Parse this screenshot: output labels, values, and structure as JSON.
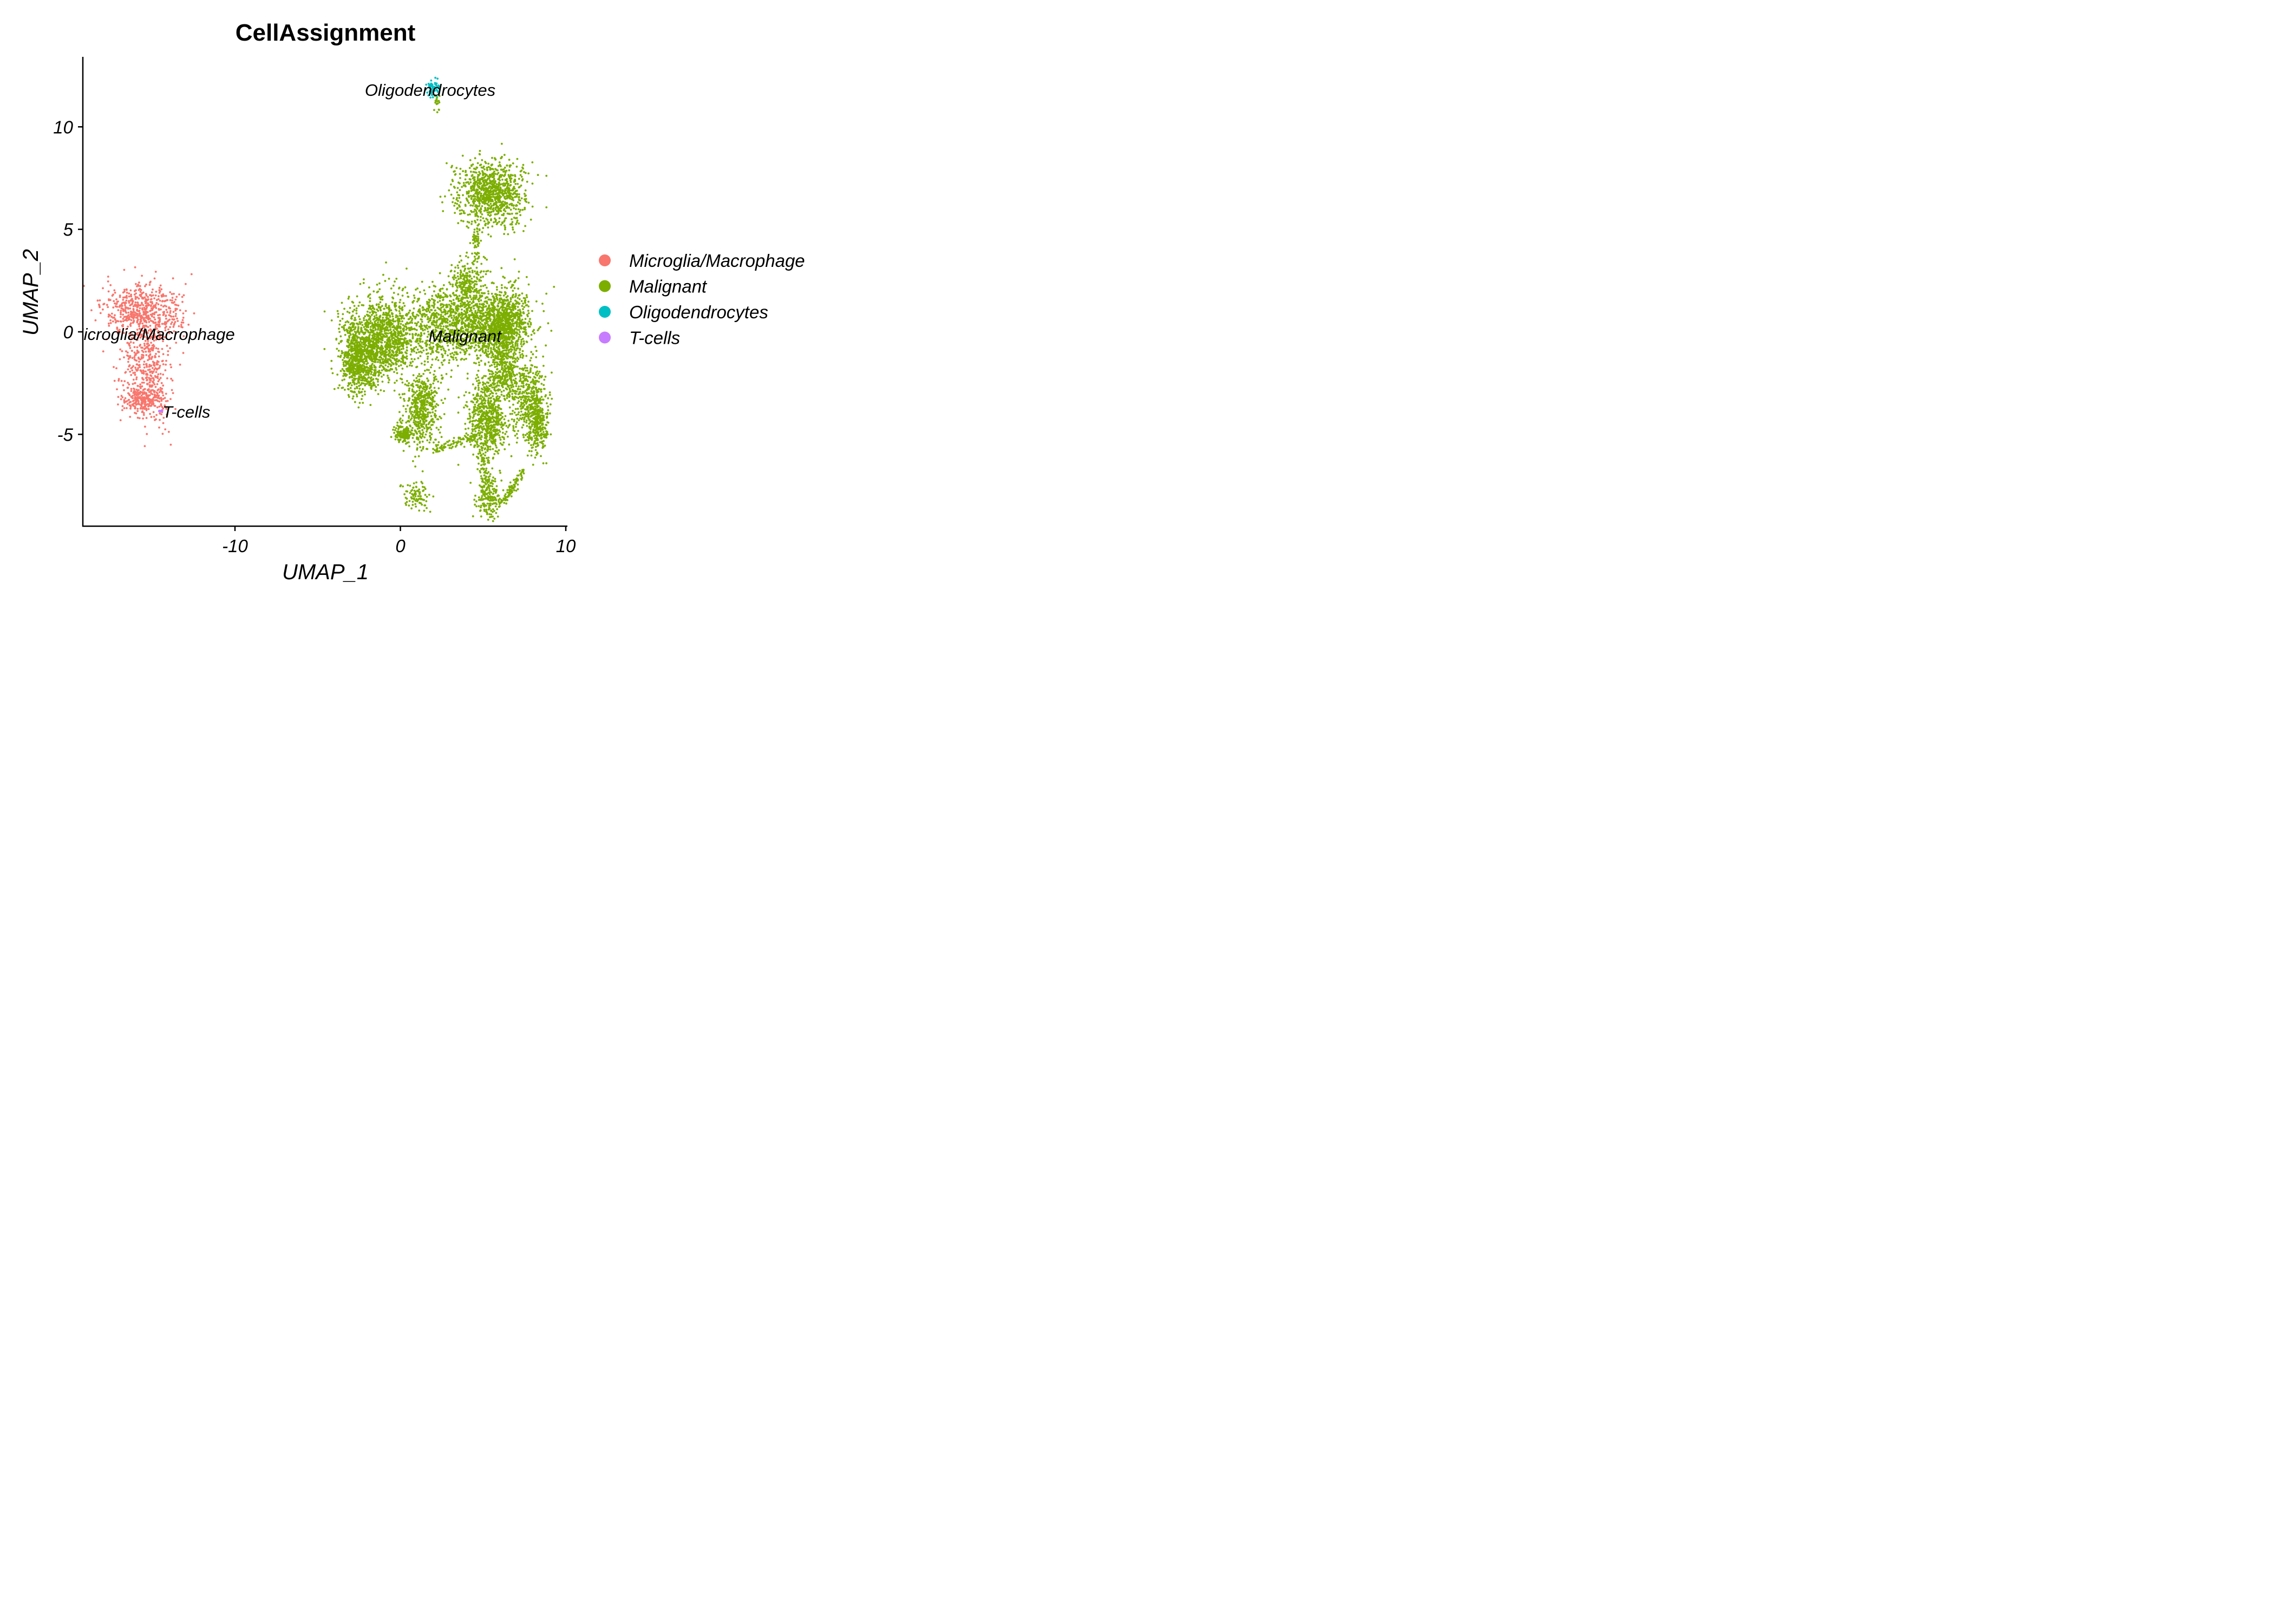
{
  "chart_data": {
    "type": "scatter",
    "title": "CellAssignment",
    "xlabel": "UMAP_1",
    "ylabel": "UMAP_2",
    "xlim": [
      -19,
      10.2
    ],
    "ylim": [
      -9.2,
      13.5
    ],
    "x_ticks": [
      -10,
      0,
      10
    ],
    "y_ticks": [
      -5,
      0,
      5,
      10
    ],
    "legend_position": "right",
    "series": [
      {
        "name": "Microglia/Macrophage",
        "color": "#F8766D"
      },
      {
        "name": "Malignant",
        "color": "#7CAE00"
      },
      {
        "name": "Oligodendrocytes",
        "color": "#00BFC4"
      },
      {
        "name": "T-cells",
        "color": "#C77CFF"
      }
    ],
    "clusters": [
      {
        "series": "Microglia/Macrophage",
        "region": "blob",
        "n": 520,
        "center": [
          -15.6,
          1.0
        ],
        "spread": [
          1.2,
          0.65
        ]
      },
      {
        "series": "Microglia/Macrophage",
        "region": "blob",
        "n": 480,
        "center": [
          -15.3,
          -1.5
        ],
        "spread": [
          0.7,
          1.4
        ]
      },
      {
        "series": "Microglia/Macrophage",
        "region": "blob",
        "n": 220,
        "center": [
          -15.6,
          -3.3
        ],
        "spread": [
          0.6,
          0.35
        ]
      },
      {
        "series": "Malignant",
        "region": "blob",
        "n": 950,
        "center": [
          5.5,
          6.8
        ],
        "spread": [
          1.0,
          0.8
        ]
      },
      {
        "series": "Malignant",
        "region": "blob",
        "n": 60,
        "center": [
          4.6,
          4.2
        ],
        "spread": [
          0.15,
          0.7
        ]
      },
      {
        "series": "Malignant",
        "region": "blob",
        "n": 200,
        "center": [
          4.0,
          2.4
        ],
        "spread": [
          0.5,
          0.5
        ]
      },
      {
        "series": "Malignant",
        "region": "blob",
        "n": 1300,
        "center": [
          -1.2,
          -0.4
        ],
        "spread": [
          1.1,
          1.0
        ]
      },
      {
        "series": "Malignant",
        "region": "blob",
        "n": 500,
        "center": [
          -2.6,
          -1.5
        ],
        "spread": [
          0.5,
          0.8
        ]
      },
      {
        "series": "Malignant",
        "region": "blob",
        "n": 1300,
        "center": [
          3.6,
          0.4
        ],
        "spread": [
          1.8,
          0.9
        ]
      },
      {
        "series": "Malignant",
        "region": "blob",
        "n": 900,
        "center": [
          6.2,
          0.3
        ],
        "spread": [
          0.8,
          0.9
        ]
      },
      {
        "series": "Malignant",
        "region": "blob",
        "n": 500,
        "center": [
          1.3,
          -3.8
        ],
        "spread": [
          0.5,
          0.9
        ]
      },
      {
        "series": "Malignant",
        "region": "blob",
        "n": 150,
        "center": [
          0.2,
          -5.0
        ],
        "spread": [
          0.25,
          0.2
        ]
      },
      {
        "series": "Malignant",
        "region": "blob",
        "n": 650,
        "center": [
          5.2,
          -4.2
        ],
        "spread": [
          0.6,
          0.9
        ]
      },
      {
        "series": "Malignant",
        "region": "blob",
        "n": 400,
        "center": [
          7.8,
          -3.3
        ],
        "spread": [
          0.5,
          0.9
        ]
      },
      {
        "series": "Malignant",
        "region": "blob",
        "n": 250,
        "center": [
          8.3,
          -4.6
        ],
        "spread": [
          0.3,
          0.7
        ]
      },
      {
        "series": "Malignant",
        "region": "blob",
        "n": 280,
        "center": [
          6.3,
          -2.0
        ],
        "spread": [
          0.5,
          0.6
        ]
      },
      {
        "series": "Malignant",
        "region": "blob",
        "n": 90,
        "center": [
          1.0,
          -8.0
        ],
        "spread": [
          0.4,
          0.35
        ]
      },
      {
        "series": "Malignant",
        "region": "blob",
        "n": 180,
        "center": [
          5.3,
          -8.0
        ],
        "spread": [
          0.35,
          0.55
        ]
      },
      {
        "series": "Malignant",
        "region": "path",
        "n": 90,
        "from": [
          6.2,
          -8.3
        ],
        "to": [
          7.4,
          -6.8
        ],
        "spread": 0.12
      },
      {
        "series": "Malignant",
        "region": "path",
        "n": 80,
        "from": [
          2.0,
          -5.8
        ],
        "to": [
          4.5,
          -5.1
        ],
        "spread": 0.12
      },
      {
        "series": "Malignant",
        "region": "path",
        "n": 60,
        "from": [
          5.0,
          -6.0
        ],
        "to": [
          5.2,
          -7.5
        ],
        "spread": 0.15
      },
      {
        "series": "Malignant",
        "region": "blob",
        "n": 20,
        "center": [
          2.2,
          11.2
        ],
        "spread": [
          0.08,
          0.25
        ]
      },
      {
        "series": "Oligodendrocytes",
        "region": "blob",
        "n": 70,
        "center": [
          2.0,
          11.85
        ],
        "spread": [
          0.2,
          0.2
        ]
      },
      {
        "series": "T-cells",
        "region": "blob",
        "n": 3,
        "center": [
          -14.5,
          -3.85
        ],
        "spread": [
          0.05,
          0.05
        ]
      }
    ],
    "annotations": [
      {
        "text": "Oligodendrocytes",
        "x": 1.8,
        "y": 11.8
      },
      {
        "text": "Malignant",
        "x": 3.9,
        "y": -0.2
      },
      {
        "text": "Microglia/Macrophage",
        "x": -15.0,
        "y": -0.1
      },
      {
        "text": "T-cells",
        "x": -12.8,
        "y": -3.9
      }
    ]
  }
}
